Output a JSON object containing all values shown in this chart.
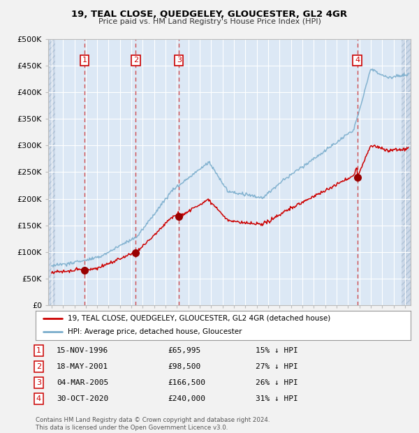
{
  "title": "19, TEAL CLOSE, QUEDGELEY, GLOUCESTER, GL2 4GR",
  "subtitle": "Price paid vs. HM Land Registry's House Price Index (HPI)",
  "background_color": "#f0f0f0",
  "plot_bg_color": "#dce8f5",
  "grid_color": "#ffffff",
  "purchases": [
    {
      "date_num": 1996.88,
      "price": 65995,
      "label": "1"
    },
    {
      "date_num": 2001.38,
      "price": 98500,
      "label": "2"
    },
    {
      "date_num": 2005.17,
      "price": 166500,
      "label": "3"
    },
    {
      "date_num": 2020.83,
      "price": 240000,
      "label": "4"
    }
  ],
  "vline_dates": [
    1996.88,
    2001.38,
    2005.17,
    2020.83
  ],
  "legend_entries": [
    "19, TEAL CLOSE, QUEDGELEY, GLOUCESTER, GL2 4GR (detached house)",
    "HPI: Average price, detached house, Gloucester"
  ],
  "table_rows": [
    {
      "num": "1",
      "date": "15-NOV-1996",
      "price": "£65,995",
      "hpi": "15% ↓ HPI"
    },
    {
      "num": "2",
      "date": "18-MAY-2001",
      "price": "£98,500",
      "hpi": "27% ↓ HPI"
    },
    {
      "num": "3",
      "date": "04-MAR-2005",
      "price": "£166,500",
      "hpi": "26% ↓ HPI"
    },
    {
      "num": "4",
      "date": "30-OCT-2020",
      "price": "£240,000",
      "hpi": "31% ↓ HPI"
    }
  ],
  "footer": "Contains HM Land Registry data © Crown copyright and database right 2024.\nThis data is licensed under the Open Government Licence v3.0.",
  "ylim": [
    0,
    500000
  ],
  "yticks": [
    0,
    50000,
    100000,
    150000,
    200000,
    250000,
    300000,
    350000,
    400000,
    450000,
    500000
  ],
  "xlim_start": 1993.7,
  "xlim_end": 2025.5,
  "red_line_color": "#cc0000",
  "blue_line_color": "#7aadcc",
  "marker_color": "#990000",
  "hatch_end": 1994.3,
  "hatch_start_right": 2024.7
}
